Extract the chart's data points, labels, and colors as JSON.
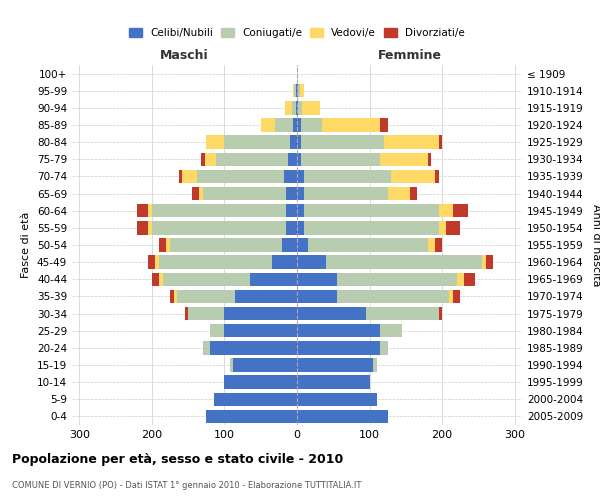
{
  "age_groups": [
    "0-4",
    "5-9",
    "10-14",
    "15-19",
    "20-24",
    "25-29",
    "30-34",
    "35-39",
    "40-44",
    "45-49",
    "50-54",
    "55-59",
    "60-64",
    "65-69",
    "70-74",
    "75-79",
    "80-84",
    "85-89",
    "90-94",
    "95-99",
    "100+"
  ],
  "birth_years": [
    "2005-2009",
    "2000-2004",
    "1995-1999",
    "1990-1994",
    "1985-1989",
    "1980-1984",
    "1975-1979",
    "1970-1974",
    "1965-1969",
    "1960-1964",
    "1955-1959",
    "1950-1954",
    "1945-1949",
    "1940-1944",
    "1935-1939",
    "1930-1934",
    "1925-1929",
    "1920-1924",
    "1915-1919",
    "1910-1914",
    "≤ 1909"
  ],
  "maschi": {
    "celibi": [
      125,
      115,
      100,
      88,
      120,
      100,
      100,
      85,
      65,
      35,
      20,
      15,
      15,
      15,
      18,
      12,
      10,
      5,
      2,
      2,
      0
    ],
    "coniugati": [
      0,
      0,
      0,
      5,
      10,
      20,
      50,
      80,
      120,
      155,
      155,
      185,
      185,
      115,
      120,
      100,
      90,
      25,
      5,
      2,
      0
    ],
    "vedovi": [
      0,
      0,
      0,
      0,
      0,
      0,
      0,
      5,
      5,
      5,
      5,
      5,
      5,
      5,
      20,
      15,
      25,
      20,
      10,
      2,
      0
    ],
    "divorziati": [
      0,
      0,
      0,
      0,
      0,
      0,
      5,
      5,
      10,
      10,
      10,
      15,
      15,
      10,
      5,
      5,
      0,
      0,
      0,
      0,
      0
    ]
  },
  "femmine": {
    "nubili": [
      125,
      110,
      100,
      105,
      115,
      115,
      95,
      55,
      55,
      40,
      15,
      10,
      10,
      10,
      10,
      5,
      5,
      5,
      2,
      2,
      0
    ],
    "coniugate": [
      0,
      0,
      0,
      5,
      10,
      30,
      100,
      155,
      165,
      215,
      165,
      185,
      185,
      115,
      120,
      110,
      115,
      30,
      5,
      2,
      0
    ],
    "vedove": [
      0,
      0,
      0,
      0,
      0,
      0,
      0,
      5,
      10,
      5,
      10,
      10,
      20,
      30,
      60,
      65,
      75,
      80,
      25,
      5,
      0
    ],
    "divorziate": [
      0,
      0,
      0,
      0,
      0,
      0,
      5,
      10,
      15,
      10,
      10,
      20,
      20,
      10,
      5,
      5,
      5,
      10,
      0,
      0,
      0
    ]
  },
  "colors": {
    "celibi": "#4472C4",
    "coniugati": "#B8CCB0",
    "vedovi": "#FFD966",
    "divorziati": "#C0392B"
  },
  "xlim": 310,
  "title": "Popolazione per età, sesso e stato civile - 2010",
  "subtitle": "COMUNE DI VERNIO (PO) - Dati ISTAT 1° gennaio 2010 - Elaborazione TUTTITALIA.IT",
  "ylabel_left": "Fasce di età",
  "ylabel_right": "Anni di nascita",
  "xlabel_left": "Maschi",
  "xlabel_right": "Femmine",
  "bg_color": "#FFFFFF",
  "grid_color": "#CCCCCC"
}
